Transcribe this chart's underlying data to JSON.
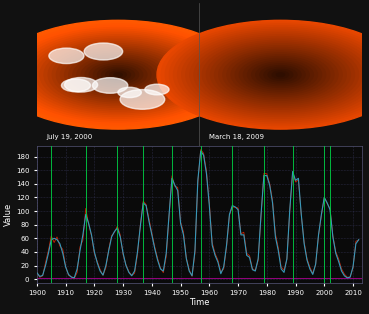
{
  "bg_color": "#111111",
  "plot_bg_color": "#0a0a0a",
  "grid_color": "#333355",
  "title_label1": "July 19, 2000",
  "title_label2": "March 18, 2009",
  "xlabel": "Time",
  "ylabel": "Value",
  "xlim": [
    1900,
    2013
  ],
  "ylim": [
    -5,
    195
  ],
  "xticks": [
    1900,
    1910,
    1920,
    1930,
    1940,
    1950,
    1960,
    1970,
    1980,
    1990,
    2000,
    2010
  ],
  "yticks": [
    0,
    20,
    40,
    60,
    80,
    100,
    120,
    140,
    160,
    180
  ],
  "line_color_red": "#cc2200",
  "line_color_blue": "#3399bb",
  "line_color_green": "#00cc44",
  "line_color_magenta": "#cc00aa",
  "sunspot_data": {
    "years": [
      1900,
      1901,
      1902,
      1903,
      1904,
      1905,
      1906,
      1907,
      1908,
      1909,
      1910,
      1911,
      1912,
      1913,
      1914,
      1915,
      1916,
      1917,
      1918,
      1919,
      1920,
      1921,
      1922,
      1923,
      1924,
      1925,
      1926,
      1927,
      1928,
      1929,
      1930,
      1931,
      1932,
      1933,
      1934,
      1935,
      1936,
      1937,
      1938,
      1939,
      1940,
      1941,
      1942,
      1943,
      1944,
      1945,
      1946,
      1947,
      1948,
      1949,
      1950,
      1951,
      1952,
      1953,
      1954,
      1955,
      1956,
      1957,
      1958,
      1959,
      1960,
      1961,
      1962,
      1963,
      1964,
      1965,
      1966,
      1967,
      1968,
      1969,
      1970,
      1971,
      1972,
      1973,
      1974,
      1975,
      1976,
      1977,
      1978,
      1979,
      1980,
      1981,
      1982,
      1983,
      1984,
      1985,
      1986,
      1987,
      1988,
      1989,
      1990,
      1991,
      1992,
      1993,
      1994,
      1995,
      1996,
      1997,
      1998,
      1999,
      2000,
      2001,
      2002,
      2003,
      2004,
      2005,
      2006,
      2007,
      2008,
      2009,
      2010,
      2011,
      2012
    ],
    "monthly": [
      9.5,
      2.7,
      5.0,
      24.4,
      42.0,
      63.5,
      53.8,
      62.0,
      48.5,
      43.9,
      18.6,
      5.7,
      3.6,
      1.4,
      9.6,
      47.4,
      57.1,
      103.9,
      80.6,
      63.6,
      37.6,
      26.1,
      14.2,
      5.8,
      16.7,
      44.3,
      63.9,
      69.0,
      77.8,
      64.9,
      35.7,
      21.2,
      11.1,
      5.7,
      8.7,
      36.1,
      79.7,
      114.4,
      109.6,
      88.8,
      67.8,
      47.5,
      30.6,
      16.3,
      9.6,
      33.2,
      92.6,
      151.6,
      136.3,
      134.7,
      83.9,
      69.4,
      31.5,
      13.9,
      4.4,
      38.0,
      141.7,
      190.2,
      184.8,
      159.0,
      112.3,
      53.9,
      37.6,
      27.9,
      10.2,
      15.1,
      47.0,
      93.8,
      105.9,
      105.5,
      104.5,
      66.6,
      68.9,
      38.0,
      34.5,
      15.5,
      12.6,
      27.5,
      92.5,
      155.4,
      154.6,
      140.4,
      115.9,
      66.6,
      45.9,
      17.9,
      13.4,
      29.2,
      100.2,
      157.6,
      142.6,
      145.7,
      94.3,
      54.6,
      29.9,
      17.5,
      8.6,
      21.5,
      64.3,
      93.3,
      119.6,
      111.0,
      104.0,
      63.7,
      40.4,
      29.8,
      15.2,
      7.5,
      2.9,
      3.1,
      16.5,
      55.7,
      57.6
    ],
    "smoothed": [
      9.5,
      4.0,
      5.5,
      20.0,
      38.0,
      58.0,
      60.0,
      58.0,
      52.0,
      38.0,
      18.0,
      7.0,
      3.0,
      2.0,
      15.0,
      42.0,
      65.0,
      95.0,
      82.0,
      65.0,
      40.0,
      24.0,
      12.0,
      6.0,
      20.0,
      42.0,
      62.0,
      70.0,
      75.0,
      62.0,
      38.0,
      20.0,
      10.0,
      5.0,
      12.0,
      40.0,
      78.0,
      112.0,
      108.0,
      85.0,
      65.0,
      45.0,
      28.0,
      15.0,
      12.0,
      38.0,
      95.0,
      148.0,
      138.0,
      130.0,
      82.0,
      65.0,
      30.0,
      12.0,
      5.0,
      42.0,
      145.0,
      188.0,
      182.0,
      155.0,
      108.0,
      50.0,
      35.0,
      25.0,
      8.0,
      18.0,
      50.0,
      95.0,
      108.0,
      106.0,
      102.0,
      65.0,
      65.0,
      35.0,
      32.0,
      14.0,
      12.0,
      30.0,
      95.0,
      152.0,
      152.0,
      138.0,
      112.0,
      62.0,
      42.0,
      15.0,
      10.0,
      30.0,
      102.0,
      158.0,
      145.0,
      148.0,
      95.0,
      52.0,
      28.0,
      15.0,
      7.0,
      22.0,
      65.0,
      95.0,
      120.0,
      112.0,
      102.0,
      62.0,
      38.0,
      26.0,
      12.0,
      5.0,
      2.0,
      3.0,
      18.0,
      52.0,
      58.0
    ],
    "solar_max_years": [
      1905,
      1917,
      1928,
      1937,
      1947,
      1957,
      1968,
      1979,
      1989,
      2000,
      2002
    ]
  }
}
